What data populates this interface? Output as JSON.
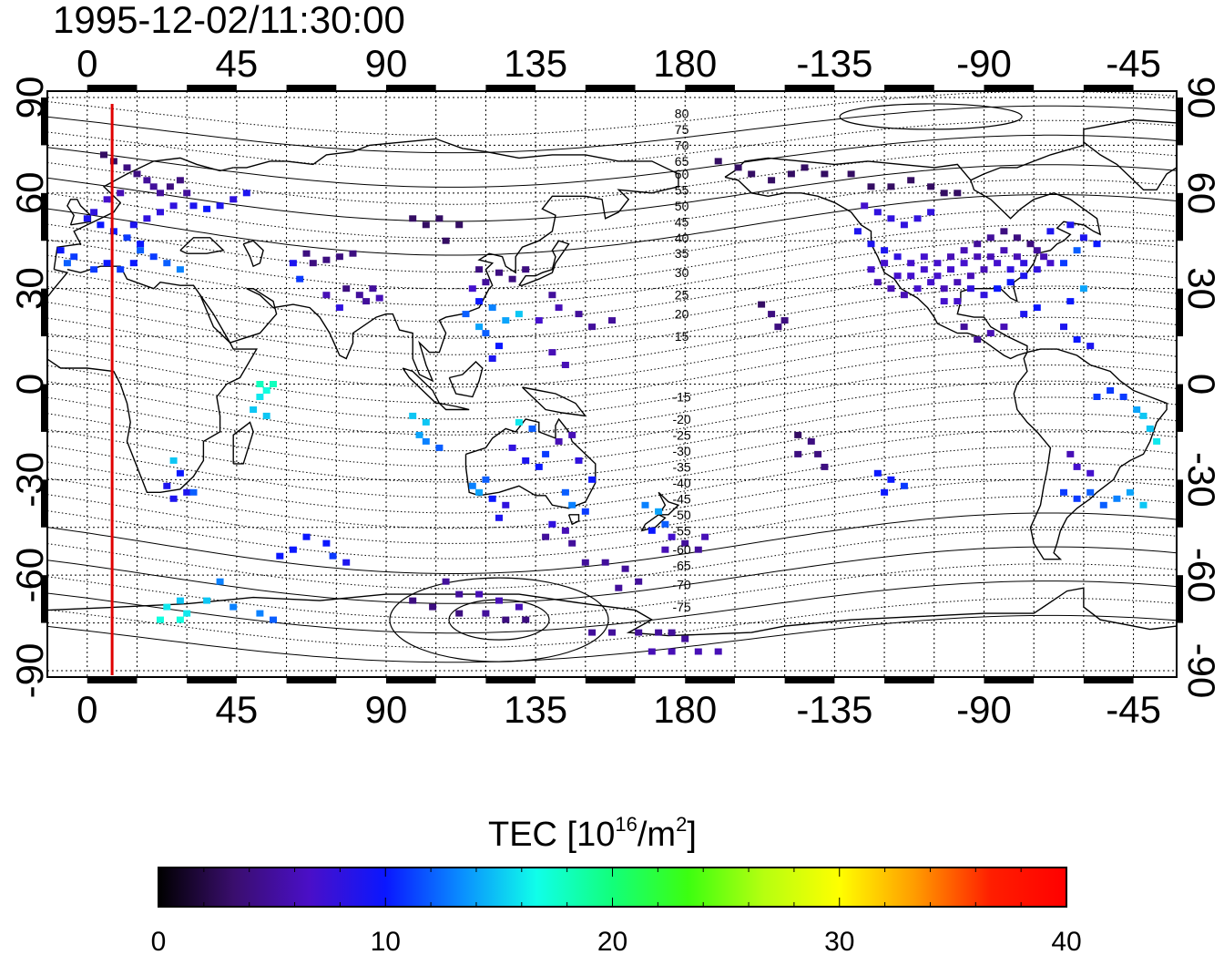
{
  "title": "1995-12-02/11:30:00",
  "colorbar": {
    "label_main": "TEC  [10",
    "label_sup1": "16",
    "label_mid": "/m",
    "label_sup2": "2",
    "label_end": "]",
    "ticks": [
      "0",
      "10",
      "20",
      "30",
      "40"
    ],
    "min": 0,
    "max": 40,
    "stops": [
      "#000000",
      "#3a0e6e",
      "#4a0fc8",
      "#0a17ff",
      "#0a8dff",
      "#10ffe9",
      "#12ff7a",
      "#3cff10",
      "#b6ff10",
      "#ffff00",
      "#ff9b00",
      "#ff1e00",
      "#ff0000"
    ]
  },
  "chart_data": {
    "type": "heatmap",
    "title": "1995-12-02/11:30:00",
    "x_top_ticks": [
      "0",
      "45",
      "90",
      "135",
      "180",
      "-135",
      "-90",
      "-45"
    ],
    "x_bottom_ticks": [
      "0",
      "45",
      "90",
      "135",
      "180",
      "-135",
      "-90",
      "-45"
    ],
    "y_left_ticks": [
      "90",
      "60",
      "30",
      "0",
      "-30",
      "-60",
      "-90"
    ],
    "y_right_ticks": [
      "90",
      "60",
      "30",
      "0",
      "-30",
      "-60",
      "-90"
    ],
    "x_lon_values": [
      0,
      45,
      90,
      135,
      180,
      225,
      270,
      315
    ],
    "y_lat_values": [
      90,
      60,
      30,
      0,
      -30,
      -60,
      -90
    ],
    "lon_range": [
      -12,
      328
    ],
    "lat_range": [
      -92,
      92
    ],
    "terminator_lon": 7.5,
    "contour_labels": [
      {
        "text": "80",
        "lat": 85
      },
      {
        "text": "75",
        "lat": 80
      },
      {
        "text": "70",
        "lat": 75
      },
      {
        "text": "65",
        "lat": 70
      },
      {
        "text": "60",
        "lat": 66
      },
      {
        "text": "55",
        "lat": 61
      },
      {
        "text": "50",
        "lat": 56
      },
      {
        "text": "45",
        "lat": 51
      },
      {
        "text": "40",
        "lat": 46
      },
      {
        "text": "35",
        "lat": 41
      },
      {
        "text": "30",
        "lat": 35
      },
      {
        "text": "25",
        "lat": 28
      },
      {
        "text": "20",
        "lat": 22
      },
      {
        "text": "15",
        "lat": 15
      },
      {
        "text": "-15",
        "lat": -4
      },
      {
        "text": "-20",
        "lat": -11
      },
      {
        "text": "-25",
        "lat": -16
      },
      {
        "text": "-30",
        "lat": -21
      },
      {
        "text": "-35",
        "lat": -26
      },
      {
        "text": "-40",
        "lat": -31
      },
      {
        "text": "-45",
        "lat": -36
      },
      {
        "text": "-50",
        "lat": -41
      },
      {
        "text": "-55",
        "lat": -46
      },
      {
        "text": "-60",
        "lat": -52
      },
      {
        "text": "-65",
        "lat": -57
      },
      {
        "text": "-70",
        "lat": -63
      },
      {
        "text": "-75",
        "lat": -70
      }
    ],
    "tec_points": [
      [
        5,
        72,
        3
      ],
      [
        8,
        70,
        3
      ],
      [
        12,
        68,
        4
      ],
      [
        15,
        66,
        4
      ],
      [
        18,
        64,
        5
      ],
      [
        20,
        62,
        5
      ],
      [
        22,
        60,
        5
      ],
      [
        25,
        62,
        4
      ],
      [
        28,
        64,
        4
      ],
      [
        30,
        60,
        5
      ],
      [
        10,
        60,
        6
      ],
      [
        6,
        58,
        7
      ],
      [
        2,
        54,
        8
      ],
      [
        0,
        52,
        9
      ],
      [
        4,
        50,
        10
      ],
      [
        8,
        48,
        10
      ],
      [
        12,
        46,
        11
      ],
      [
        16,
        44,
        10
      ],
      [
        14,
        50,
        9
      ],
      [
        18,
        52,
        8
      ],
      [
        22,
        54,
        8
      ],
      [
        26,
        56,
        8
      ],
      [
        32,
        56,
        9
      ],
      [
        36,
        55,
        10
      ],
      [
        40,
        56,
        9
      ],
      [
        44,
        58,
        8
      ],
      [
        48,
        60,
        9
      ],
      [
        -4,
        40,
        11
      ],
      [
        -8,
        42,
        10
      ],
      [
        -6,
        38,
        12
      ],
      [
        2,
        36,
        11
      ],
      [
        6,
        38,
        10
      ],
      [
        10,
        36,
        11
      ],
      [
        14,
        38,
        10
      ],
      [
        16,
        42,
        12
      ],
      [
        20,
        40,
        11
      ],
      [
        24,
        38,
        12
      ],
      [
        28,
        36,
        13
      ],
      [
        68,
        38,
        4
      ],
      [
        72,
        39,
        4
      ],
      [
        76,
        40,
        4
      ],
      [
        80,
        41,
        4
      ],
      [
        66,
        41,
        4
      ],
      [
        62,
        38,
        9
      ],
      [
        64,
        33,
        11
      ],
      [
        78,
        30,
        4
      ],
      [
        82,
        28,
        5
      ],
      [
        86,
        30,
        5
      ],
      [
        88,
        27,
        6
      ],
      [
        84,
        26,
        5
      ],
      [
        72,
        28,
        6
      ],
      [
        76,
        24,
        8
      ],
      [
        98,
        52,
        3
      ],
      [
        102,
        50,
        3
      ],
      [
        106,
        52,
        3
      ],
      [
        112,
        50,
        3
      ],
      [
        108,
        45,
        3
      ],
      [
        118,
        36,
        4
      ],
      [
        124,
        35,
        4
      ],
      [
        128,
        33,
        4
      ],
      [
        132,
        36,
        4
      ],
      [
        120,
        32,
        5
      ],
      [
        116,
        30,
        7
      ],
      [
        118,
        26,
        10
      ],
      [
        122,
        24,
        13
      ],
      [
        126,
        20,
        14
      ],
      [
        130,
        22,
        15
      ],
      [
        114,
        22,
        12
      ],
      [
        118,
        18,
        14
      ],
      [
        120,
        16,
        12
      ],
      [
        124,
        12,
        10
      ],
      [
        122,
        8,
        9
      ],
      [
        140,
        28,
        5
      ],
      [
        142,
        24,
        6
      ],
      [
        136,
        20,
        7
      ],
      [
        148,
        22,
        5
      ],
      [
        152,
        18,
        5
      ],
      [
        158,
        20,
        5
      ],
      [
        140,
        10,
        6
      ],
      [
        144,
        6,
        6
      ],
      [
        52,
        0,
        18
      ],
      [
        54,
        -2,
        17
      ],
      [
        56,
        0,
        18
      ],
      [
        52,
        -4,
        16
      ],
      [
        50,
        -8,
        15
      ],
      [
        54,
        -10,
        15
      ],
      [
        26,
        -24,
        15
      ],
      [
        28,
        -28,
        10
      ],
      [
        24,
        -32,
        9
      ],
      [
        30,
        -34,
        9
      ],
      [
        26,
        -36,
        9
      ],
      [
        32,
        -34,
        12
      ],
      [
        98,
        -10,
        15
      ],
      [
        102,
        -12,
        15
      ],
      [
        100,
        -16,
        14
      ],
      [
        102,
        -18,
        13
      ],
      [
        106,
        -20,
        12
      ],
      [
        116,
        -32,
        13
      ],
      [
        120,
        -30,
        12
      ],
      [
        118,
        -34,
        14
      ],
      [
        122,
        -36,
        10
      ],
      [
        126,
        -38,
        8
      ],
      [
        124,
        -42,
        9
      ],
      [
        130,
        -12,
        16
      ],
      [
        134,
        -14,
        12
      ],
      [
        128,
        -20,
        8
      ],
      [
        132,
        -24,
        9
      ],
      [
        136,
        -26,
        10
      ],
      [
        138,
        -22,
        11
      ],
      [
        142,
        -18,
        6
      ],
      [
        146,
        -16,
        6
      ],
      [
        148,
        -24,
        8
      ],
      [
        152,
        -30,
        10
      ],
      [
        144,
        -34,
        12
      ],
      [
        146,
        -38,
        13
      ],
      [
        150,
        -40,
        11
      ],
      [
        140,
        -44,
        8
      ],
      [
        144,
        -46,
        6
      ],
      [
        146,
        -50,
        5
      ],
      [
        138,
        -48,
        5
      ],
      [
        168,
        -38,
        13
      ],
      [
        172,
        -40,
        14
      ],
      [
        174,
        -44,
        12
      ],
      [
        170,
        -46,
        10
      ],
      [
        176,
        -48,
        7
      ],
      [
        174,
        -52,
        6
      ],
      [
        180,
        -50,
        5
      ],
      [
        184,
        -52,
        5
      ],
      [
        186,
        -48,
        6
      ],
      [
        66,
        -48,
        10
      ],
      [
        62,
        -52,
        10
      ],
      [
        58,
        -54,
        10
      ],
      [
        72,
        -50,
        10
      ],
      [
        74,
        -54,
        11
      ],
      [
        78,
        -56,
        9
      ],
      [
        156,
        -56,
        5
      ],
      [
        162,
        -58,
        5
      ],
      [
        166,
        -62,
        5
      ],
      [
        160,
        -64,
        5
      ],
      [
        150,
        -56,
        5
      ],
      [
        40,
        -62,
        13
      ],
      [
        36,
        -68,
        15
      ],
      [
        28,
        -68,
        15
      ],
      [
        24,
        -70,
        16
      ],
      [
        30,
        -72,
        16
      ],
      [
        22,
        -74,
        17
      ],
      [
        28,
        -74,
        17
      ],
      [
        44,
        -70,
        13
      ],
      [
        52,
        -72,
        13
      ],
      [
        56,
        -74,
        12
      ],
      [
        108,
        -62,
        5
      ],
      [
        112,
        -66,
        5
      ],
      [
        118,
        -66,
        6
      ],
      [
        124,
        -68,
        6
      ],
      [
        130,
        -70,
        6
      ],
      [
        120,
        -72,
        5
      ],
      [
        98,
        -68,
        4
      ],
      [
        104,
        -70,
        4
      ],
      [
        112,
        -72,
        4
      ],
      [
        126,
        -74,
        4
      ],
      [
        132,
        -74,
        4
      ],
      [
        152,
        -78,
        5
      ],
      [
        158,
        -78,
        5
      ],
      [
        166,
        -78,
        5
      ],
      [
        172,
        -78,
        5
      ],
      [
        176,
        -78,
        5
      ],
      [
        180,
        -80,
        5
      ],
      [
        170,
        -84,
        6
      ],
      [
        176,
        -84,
        6
      ],
      [
        184,
        -84,
        6
      ],
      [
        190,
        -84,
        6
      ],
      [
        203,
        25,
        3
      ],
      [
        206,
        22,
        4
      ],
      [
        208,
        18,
        4
      ],
      [
        210,
        20,
        4
      ],
      [
        214,
        -16,
        3
      ],
      [
        218,
        -18,
        4
      ],
      [
        220,
        -22,
        4
      ],
      [
        222,
        -26,
        4
      ],
      [
        214,
        -22,
        4
      ],
      [
        238,
        -28,
        10
      ],
      [
        242,
        -30,
        10
      ],
      [
        246,
        -32,
        11
      ],
      [
        240,
        -34,
        10
      ],
      [
        190,
        70,
        3
      ],
      [
        196,
        68,
        3
      ],
      [
        200,
        66,
        3
      ],
      [
        206,
        64,
        3
      ],
      [
        212,
        66,
        3
      ],
      [
        216,
        68,
        3
      ],
      [
        222,
        66,
        3
      ],
      [
        230,
        66,
        3
      ],
      [
        236,
        62,
        3
      ],
      [
        242,
        62,
        3
      ],
      [
        248,
        64,
        3
      ],
      [
        254,
        62,
        3
      ],
      [
        258,
        60,
        3
      ],
      [
        262,
        60,
        3
      ],
      [
        234,
        56,
        7
      ],
      [
        238,
        54,
        8
      ],
      [
        242,
        52,
        8
      ],
      [
        246,
        50,
        8
      ],
      [
        250,
        52,
        8
      ],
      [
        254,
        54,
        8
      ],
      [
        232,
        48,
        9
      ],
      [
        236,
        44,
        9
      ],
      [
        240,
        42,
        9
      ],
      [
        244,
        40,
        8
      ],
      [
        248,
        38,
        7
      ],
      [
        252,
        40,
        7
      ],
      [
        256,
        38,
        7
      ],
      [
        260,
        40,
        6
      ],
      [
        264,
        42,
        6
      ],
      [
        268,
        44,
        5
      ],
      [
        272,
        46,
        5
      ],
      [
        276,
        48,
        4
      ],
      [
        280,
        46,
        4
      ],
      [
        284,
        44,
        4
      ],
      [
        286,
        42,
        5
      ],
      [
        288,
        40,
        6
      ],
      [
        290,
        38,
        7
      ],
      [
        286,
        36,
        8
      ],
      [
        282,
        34,
        9
      ],
      [
        278,
        36,
        8
      ],
      [
        274,
        38,
        7
      ],
      [
        270,
        36,
        6
      ],
      [
        266,
        34,
        6
      ],
      [
        262,
        32,
        6
      ],
      [
        258,
        30,
        6
      ],
      [
        254,
        32,
        7
      ],
      [
        250,
        30,
        7
      ],
      [
        246,
        28,
        6
      ],
      [
        242,
        30,
        6
      ],
      [
        238,
        32,
        6
      ],
      [
        236,
        36,
        7
      ],
      [
        240,
        38,
        7
      ],
      [
        244,
        34,
        7
      ],
      [
        248,
        34,
        7
      ],
      [
        252,
        36,
        7
      ],
      [
        256,
        34,
        7
      ],
      [
        260,
        36,
        7
      ],
      [
        264,
        38,
        7
      ],
      [
        268,
        40,
        6
      ],
      [
        272,
        40,
        6
      ],
      [
        276,
        42,
        6
      ],
      [
        280,
        40,
        6
      ],
      [
        282,
        38,
        8
      ],
      [
        278,
        32,
        10
      ],
      [
        274,
        30,
        10
      ],
      [
        270,
        28,
        8
      ],
      [
        266,
        30,
        8
      ],
      [
        262,
        26,
        7
      ],
      [
        258,
        26,
        7
      ],
      [
        290,
        48,
        9
      ],
      [
        296,
        50,
        9
      ],
      [
        300,
        46,
        9
      ],
      [
        304,
        44,
        10
      ],
      [
        298,
        42,
        12
      ],
      [
        294,
        38,
        11
      ],
      [
        300,
        30,
        14
      ],
      [
        296,
        26,
        10
      ],
      [
        286,
        24,
        10
      ],
      [
        282,
        22,
        9
      ],
      [
        276,
        18,
        6
      ],
      [
        272,
        16,
        6
      ],
      [
        268,
        14,
        5
      ],
      [
        264,
        18,
        5
      ],
      [
        294,
        18,
        9
      ],
      [
        298,
        14,
        10
      ],
      [
        302,
        12,
        9
      ],
      [
        304,
        -4,
        11
      ],
      [
        308,
        -2,
        11
      ],
      [
        312,
        -4,
        11
      ],
      [
        316,
        -8,
        14
      ],
      [
        318,
        -10,
        15
      ],
      [
        320,
        -14,
        15
      ],
      [
        322,
        -18,
        16
      ],
      [
        296,
        -22,
        6
      ],
      [
        298,
        -26,
        7
      ],
      [
        302,
        -28,
        7
      ],
      [
        294,
        -34,
        11
      ],
      [
        298,
        -36,
        11
      ],
      [
        302,
        -34,
        12
      ],
      [
        306,
        -38,
        12
      ],
      [
        310,
        -36,
        13
      ],
      [
        314,
        -34,
        14
      ],
      [
        318,
        -38,
        15
      ]
    ]
  }
}
